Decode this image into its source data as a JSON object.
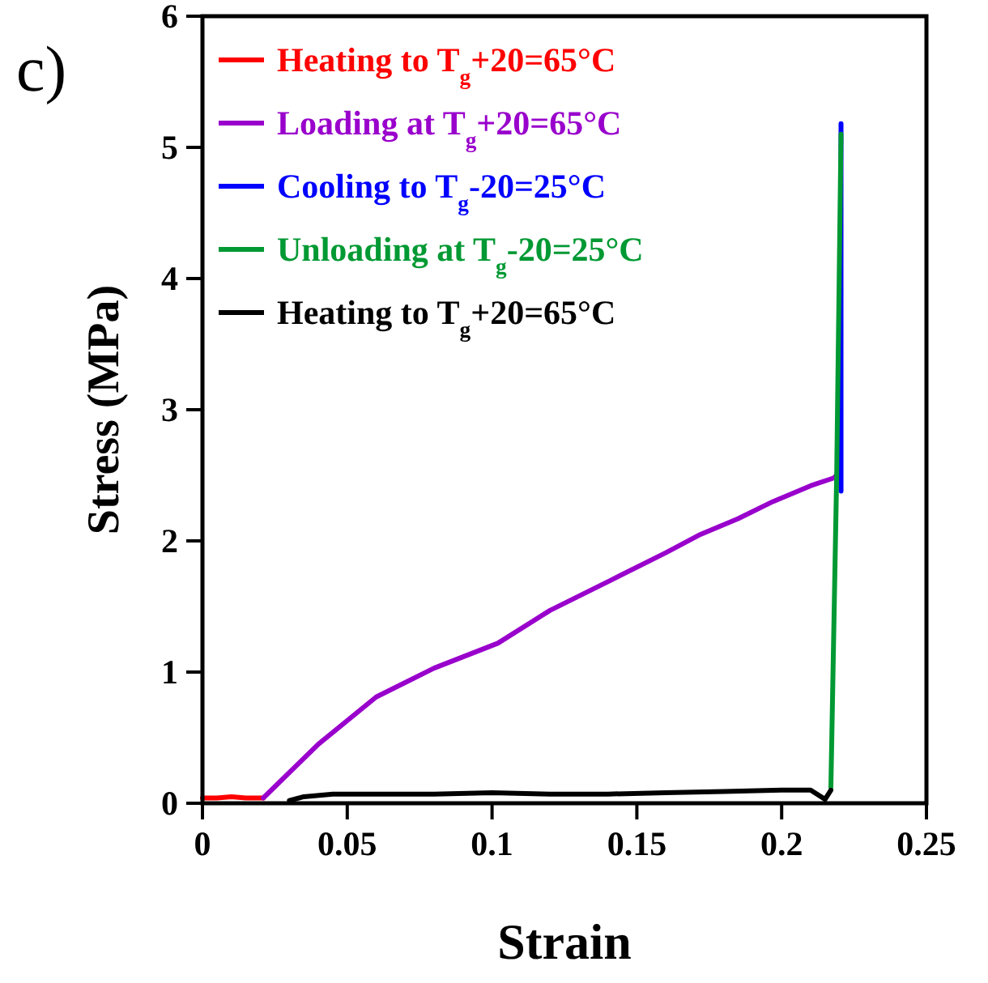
{
  "chart_data": {
    "type": "line",
    "xlabel": "Strain",
    "ylabel": "Stress (MPa)",
    "annotations": [
      "c)"
    ],
    "xlim": [
      0,
      0.25
    ],
    "ylim": [
      0,
      6
    ],
    "xticks": [
      0,
      0.05,
      {
        "value": 0.1,
        "label": "0.1"
      },
      0.15,
      {
        "value": 0.2,
        "label": "0.2"
      },
      0.25
    ],
    "yticks": [
      0,
      1,
      2,
      3,
      4,
      5,
      6
    ],
    "legend": "top left",
    "grid": false,
    "line_style": "solid",
    "series": [
      {
        "name": "Heating to T$_{g}$+20=65°C",
        "color": "#ff0000",
        "x": [
          0,
          0.005,
          0.01,
          0.015,
          0.021
        ],
        "values": [
          0.04,
          0.04,
          0.05,
          0.04,
          0.04
        ]
      },
      {
        "name": "Loading at T$_{g}$+20=65°C",
        "color": "#9900cc",
        "x": [
          0.021,
          0.04,
          0.06,
          0.08,
          0.102,
          0.12,
          0.141,
          0.16,
          0.172,
          0.185,
          0.197,
          0.21,
          0.218,
          0.22
        ],
        "values": [
          0.04,
          0.45,
          0.81,
          1.03,
          1.22,
          1.47,
          1.7,
          1.91,
          2.05,
          2.17,
          2.3,
          2.42,
          2.48,
          2.52
        ]
      },
      {
        "name": "Cooling to T$_{g}$-20=25°C",
        "color": "#0000ff",
        "x": [
          0.2205,
          0.2205
        ],
        "values": [
          2.38,
          5.18
        ]
      },
      {
        "name": "Unloading at T$_{g}$-20=25°C",
        "color": "#009933",
        "x": [
          0.2205,
          0.219,
          0.217
        ],
        "values": [
          5.1,
          2.5,
          0.12
        ]
      },
      {
        "name": "Heating to T$_{g}$+20=65°C",
        "color": "#000000",
        "x": [
          0.03,
          0.035,
          0.045,
          0.06,
          0.08,
          0.1,
          0.12,
          0.14,
          0.16,
          0.18,
          0.2,
          0.21,
          0.215,
          0.217
        ],
        "values": [
          0.02,
          0.05,
          0.07,
          0.07,
          0.07,
          0.08,
          0.07,
          0.07,
          0.08,
          0.09,
          0.1,
          0.1,
          0.03,
          0.1
        ]
      }
    ]
  }
}
